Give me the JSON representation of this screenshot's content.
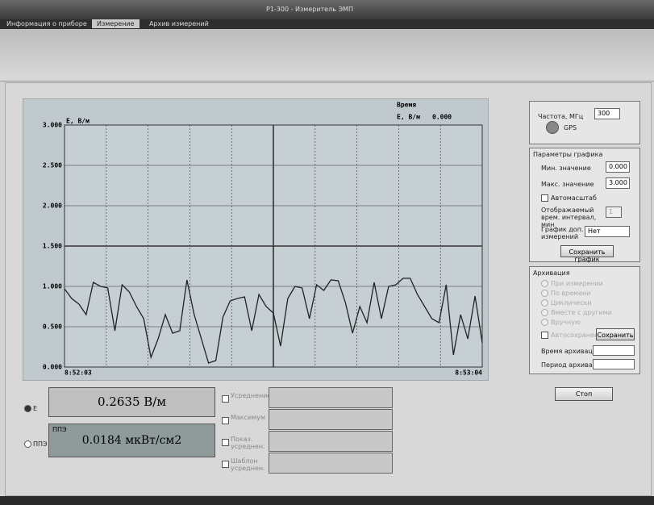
{
  "window": {
    "title": "P1-300 - Измеритель ЭМП"
  },
  "tabs": [
    "Информация о приборе",
    "Измерение",
    "Архив измерений"
  ],
  "chart_data": {
    "type": "line",
    "y_label": "E, В/м",
    "readout_title": "Время",
    "readout_name": "E, В/м",
    "readout_value": "0.000",
    "categories": [
      "8:52:03",
      null,
      null,
      null,
      null,
      null,
      null,
      null,
      null,
      null,
      null,
      null,
      null,
      null,
      null,
      null,
      null,
      null,
      null,
      null,
      null,
      null,
      null,
      null,
      null,
      null,
      null,
      null,
      null,
      null,
      null,
      null,
      null,
      null,
      null,
      null,
      null,
      null,
      null,
      null,
      null,
      null,
      null,
      null,
      null,
      null,
      null,
      null,
      null,
      null,
      null,
      null,
      null,
      null,
      null,
      null,
      null,
      null,
      "8:53:04"
    ],
    "values": [
      0.97,
      0.85,
      0.78,
      0.65,
      1.05,
      1.0,
      0.98,
      0.45,
      1.02,
      0.93,
      0.75,
      0.6,
      0.12,
      0.35,
      0.65,
      0.42,
      0.45,
      1.08,
      0.65,
      0.35,
      0.05,
      0.08,
      0.62,
      0.82,
      0.85,
      0.87,
      0.45,
      0.9,
      0.75,
      0.67,
      0.26,
      0.85,
      1.0,
      0.98,
      0.6,
      1.02,
      0.95,
      1.08,
      1.07,
      0.8,
      0.42,
      0.75,
      0.55,
      1.05,
      0.6,
      1.0,
      1.02,
      1.1,
      1.1,
      0.9,
      0.75,
      0.6,
      0.55,
      1.02,
      0.15,
      0.65,
      0.35,
      0.88,
      0.3
    ],
    "color": "#222222",
    "ylim": [
      0,
      3
    ],
    "yticks": [
      {
        "value": 0,
        "label": "0.000"
      },
      {
        "value": 0.5,
        "label": "0.500"
      },
      {
        "value": 1,
        "label": "1.000"
      },
      {
        "value": 1.5,
        "label": "1.500"
      },
      {
        "value": 2,
        "label": "2.000"
      },
      {
        "value": 2.5,
        "label": "2.500"
      },
      {
        "value": 3,
        "label": "3.000"
      }
    ],
    "grid": true
  },
  "frequency": {
    "label": "Частота, МГц",
    "value": "300",
    "gps": "GPS"
  },
  "graph_params": {
    "title": "Параметры графика",
    "min_label": "Мин. значение",
    "min_value": "0.000",
    "max_label": "Макс. значение",
    "max_value": "3.000",
    "autoscale": "Автомасштаб",
    "interval_label": "Отображаемый врем. интервал, мин",
    "interval_value": "1",
    "extra_label": "График доп. измерений",
    "extra_value": "Нет",
    "save": "Сохранить график"
  },
  "archive": {
    "title": "Архивация",
    "options": [
      "При измерении",
      "По времени",
      "Циклически",
      "Вместе с другими",
      "Вручную"
    ],
    "save_option": "Автосохранение",
    "save": "Сохранить",
    "time_label": "Время архивации",
    "period_label": "Период архивации"
  },
  "stop": "Стоп",
  "readings": {
    "e_radio": "E",
    "e_value": "0.2635 В/м",
    "ppe_radio": "ППЭ",
    "ppe_label": "ППЭ",
    "ppe_value": "0.0184 мкВт/см2"
  },
  "extra_options": [
    "Усреднение",
    "Максимум",
    "Показ. усреднен.",
    "Шаблон усреднен."
  ]
}
